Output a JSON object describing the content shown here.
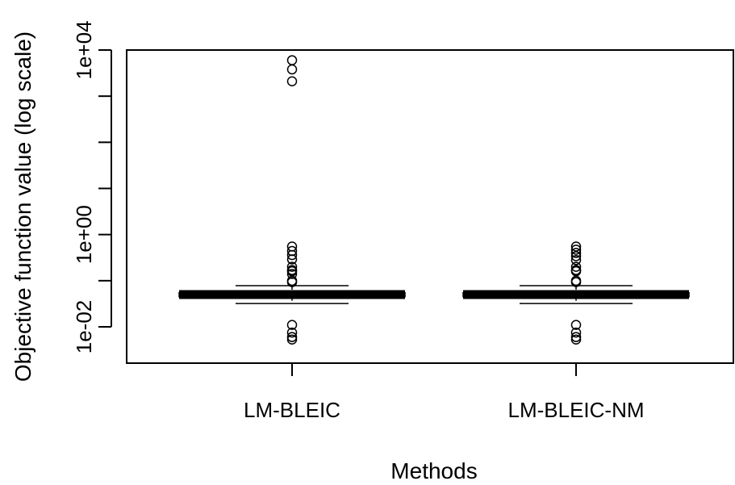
{
  "chart_data": {
    "type": "boxplot",
    "title": "",
    "xlabel": "Methods",
    "ylabel": "Objective function value (log scale)",
    "y_scale": "log10",
    "ylim": [
      0.0007,
      10000
    ],
    "y_ticks": [
      {
        "value": 0.01,
        "label": "1e-02"
      },
      {
        "value": 0.1,
        "label": ""
      },
      {
        "value": 1,
        "label": "1e+00"
      },
      {
        "value": 10,
        "label": ""
      },
      {
        "value": 100,
        "label": ""
      },
      {
        "value": 1000,
        "label": ""
      },
      {
        "value": 10000,
        "label": "1e+04"
      }
    ],
    "categories": [
      "LM-BLEIC",
      "LM-BLEIC-NM"
    ],
    "boxes": [
      {
        "name": "LM-BLEIC",
        "whisker_low": 0.032,
        "q1": 0.045,
        "median": 0.05,
        "q3": 0.055,
        "whisker_high": 0.078,
        "outliers": [
          6000,
          3800,
          2100,
          0.55,
          0.44,
          0.36,
          0.29,
          0.2,
          0.17,
          0.16,
          0.14,
          0.1,
          0.093,
          0.011,
          0.0075,
          0.006,
          0.0053
        ]
      },
      {
        "name": "LM-BLEIC-NM",
        "whisker_low": 0.032,
        "q1": 0.045,
        "median": 0.05,
        "q3": 0.055,
        "whisker_high": 0.078,
        "outliers": [
          0.55,
          0.47,
          0.4,
          0.34,
          0.28,
          0.2,
          0.17,
          0.16,
          0.1,
          0.093,
          0.011,
          0.0075,
          0.006,
          0.0053
        ]
      }
    ]
  }
}
